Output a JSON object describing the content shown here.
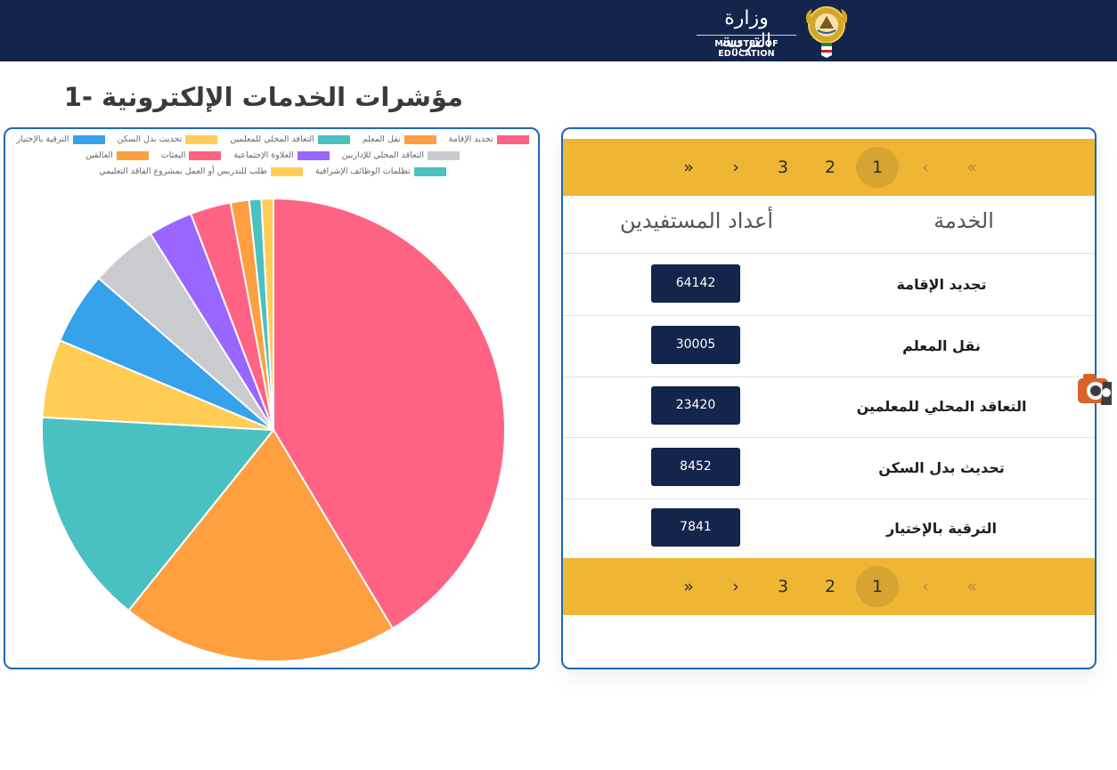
{
  "header": {
    "ministry_name_ar": "وزارة التربية",
    "ministry_name_en": "MINISTRY OF EDUCATION"
  },
  "page": {
    "section_title": "1- مؤشرات الخدمات الإلكترونية"
  },
  "colors": {
    "header_bg": "#13254b",
    "card_border": "#1b67b5",
    "pager_bg": "#efb634",
    "pager_active": "#d7a432",
    "badge_bg": "#13254b"
  },
  "chart_data": {
    "type": "pie",
    "legend_position": "top",
    "categories": [
      "تجديد الإقامة",
      "نقل المعلم",
      "التعاقد المحلي للمعلمين",
      "تحديث بدل السكن",
      "الترقية بالإختيار",
      "التعاقد المحلي للإداريين",
      "العلاوة الإجتماعية",
      "البعثات",
      "العالقين",
      "تظلمات الوظائف الإشرافية",
      "طلب للتدريس أو العمل بمشروع الفاقد التعليمي"
    ],
    "values": [
      64142,
      30005,
      23420,
      8452,
      7841,
      7300,
      4800,
      4400,
      2000,
      1300,
      1300
    ],
    "colors": [
      "#ff6384",
      "#ff9f40",
      "#4bc0c0",
      "#ffcd56",
      "#36a2eb",
      "#c9cbcf",
      "#9966ff",
      "#ff6384",
      "#ff9f40",
      "#4bc0c0",
      "#ffcd56"
    ]
  },
  "table": {
    "headers": {
      "service": "الخدمة",
      "beneficiaries": "أعداد المستفيدين"
    },
    "rows": [
      {
        "service": "تجديد الإقامة",
        "count": "64142"
      },
      {
        "service": "نقل المعلم",
        "count": "30005"
      },
      {
        "service": "التعاقد المحلي للمعلمين",
        "count": "23420"
      },
      {
        "service": "تحديث بدل السكن",
        "count": "8452"
      },
      {
        "service": "الترقية بالإختيار",
        "count": "7841"
      }
    ]
  },
  "pagination": {
    "first": "«",
    "prev": "‹",
    "pages": [
      "1",
      "2",
      "3"
    ],
    "current": "1",
    "next": "›",
    "last": "»"
  },
  "side_widget": {
    "icon": "camera-badge-icon"
  }
}
